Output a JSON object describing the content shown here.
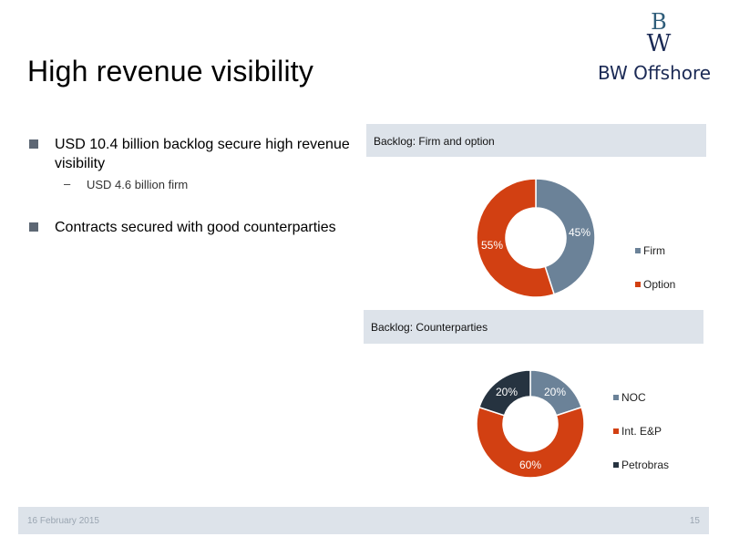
{
  "slide": {
    "title": "High revenue visibility",
    "logo": {
      "text": "BW Offshore",
      "mark": "BW"
    },
    "bullets": [
      {
        "text": "USD 10.4 billion backlog secure high revenue visibility",
        "sub": "USD 4.6 billion firm"
      },
      {
        "text": "Contracts secured with good counterparties"
      }
    ],
    "footer": {
      "date": "16 February 2015",
      "page": "15"
    }
  },
  "chart_data": [
    {
      "type": "pie",
      "title": "Backlog: Firm and option",
      "categories": [
        "Firm",
        "Option"
      ],
      "values": [
        45,
        55
      ],
      "labels": [
        "45%",
        "55%"
      ],
      "colors": [
        "#6b8298",
        "#d24012"
      ],
      "legend": "right"
    },
    {
      "type": "pie",
      "title": "Backlog: Counterparties",
      "categories": [
        "NOC",
        "Int. E&P",
        "Petrobras"
      ],
      "values": [
        20,
        60,
        20
      ],
      "labels": [
        "20%",
        "60%",
        "20%"
      ],
      "colors": [
        "#6b8298",
        "#d24012",
        "#263340"
      ],
      "legend": "right"
    }
  ]
}
